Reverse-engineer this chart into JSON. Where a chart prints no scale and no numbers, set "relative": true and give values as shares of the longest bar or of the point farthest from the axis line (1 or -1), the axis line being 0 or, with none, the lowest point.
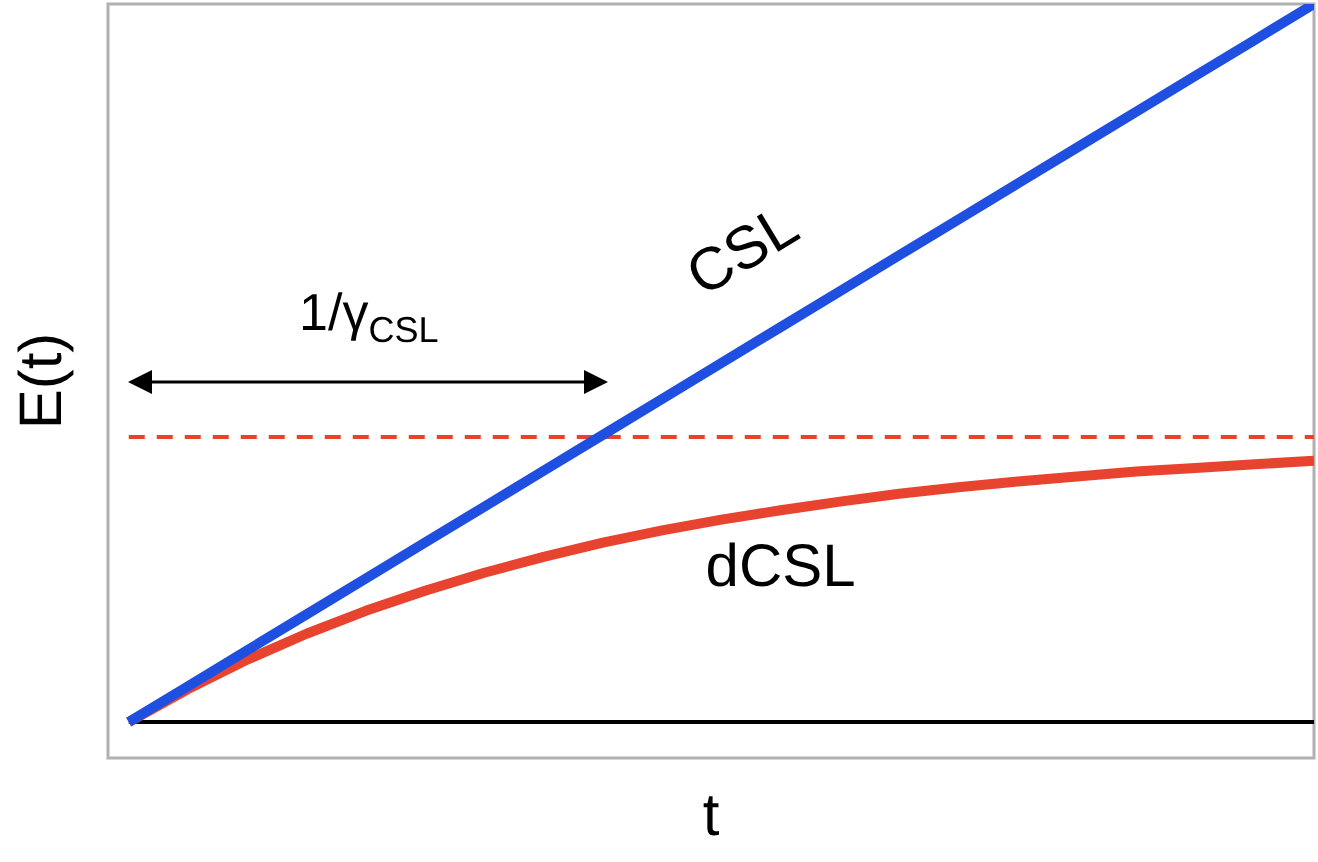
{
  "chart_data": {
    "type": "line",
    "relative": true,
    "xlabel": "t",
    "ylabel": "E(t)",
    "categories": [
      null,
      null,
      null,
      null,
      null,
      null,
      null,
      null,
      null,
      null,
      null,
      null,
      null,
      null,
      null,
      null,
      null,
      null,
      null,
      null,
      null
    ],
    "series": [
      {
        "name": "CSL",
        "color": "#1f4fe0",
        "values": [
          0,
          0.05,
          0.1,
          0.15,
          0.2,
          0.25,
          0.3,
          0.35,
          0.4,
          0.45,
          0.5,
          0.55,
          0.6,
          0.65,
          0.7,
          0.75,
          0.8,
          0.85,
          0.9,
          0.95,
          1
        ]
      },
      {
        "name": "dCSL",
        "color": "#e8432f",
        "values": [
          0,
          0.046,
          0.087,
          0.123,
          0.155,
          0.183,
          0.208,
          0.23,
          0.25,
          0.267,
          0.282,
          0.295,
          0.307,
          0.318,
          0.327,
          0.335,
          0.342,
          0.349,
          0.354,
          0.359,
          0.364
        ]
      }
    ],
    "ref_lines": [
      {
        "axis": "y",
        "value": 0.397,
        "color": "#e8432f",
        "line_style": "dashed"
      },
      {
        "axis": "y",
        "value": 0,
        "color": "#000000",
        "line_style": "solid"
      }
    ],
    "annotations": [
      "1/γ$_{CSL}$"
    ],
    "grid": false,
    "legend": false,
    "marker": "none",
    "line_style": "solid"
  }
}
